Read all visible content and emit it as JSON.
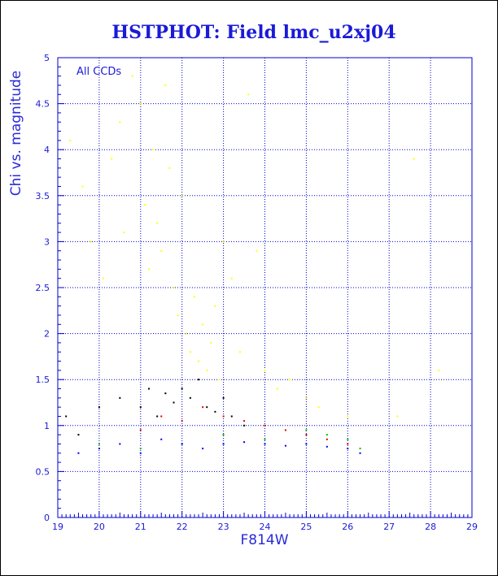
{
  "chart_data": {
    "type": "scatter",
    "title": "HSTPHOT: Field lmc_u2xj04",
    "xlabel": "F814W",
    "ylabel": "Chi vs. magnitude",
    "annotation": "All CCDs",
    "xlim": [
      19,
      29
    ],
    "ylim": [
      0,
      5
    ],
    "x_ticks": [
      "19",
      "20",
      "21",
      "22",
      "23",
      "24",
      "25",
      "26",
      "27",
      "28",
      "29"
    ],
    "y_ticks": [
      "0",
      "0.5",
      "1",
      "1.5",
      "2",
      "2.5",
      "3",
      "3.5",
      "4",
      "4.5",
      "5"
    ],
    "grid": true,
    "colors": {
      "axis": "#0000cc",
      "text": "#1a1ad8",
      "yellow": "#ffff00",
      "black": "#000000",
      "red": "#e00000",
      "green": "#00c000",
      "blue": "#0000ff"
    },
    "series": [
      {
        "color_name": "yellow",
        "points": [
          [
            19.3,
            4.1
          ],
          [
            19.6,
            3.6
          ],
          [
            19.8,
            3.0
          ],
          [
            20.1,
            2.6
          ],
          [
            20.3,
            3.9
          ],
          [
            20.5,
            4.3
          ],
          [
            20.6,
            3.1
          ],
          [
            20.8,
            4.8
          ],
          [
            21.0,
            4.5
          ],
          [
            21.1,
            3.4
          ],
          [
            21.2,
            2.7
          ],
          [
            21.3,
            4.0
          ],
          [
            21.4,
            3.2
          ],
          [
            21.5,
            2.9
          ],
          [
            21.6,
            4.7
          ],
          [
            21.7,
            3.8
          ],
          [
            21.8,
            2.5
          ],
          [
            21.9,
            2.2
          ],
          [
            22.0,
            3.5
          ],
          [
            22.1,
            2.0
          ],
          [
            22.2,
            1.8
          ],
          [
            22.3,
            2.4
          ],
          [
            22.4,
            1.7
          ],
          [
            22.5,
            2.1
          ],
          [
            22.6,
            1.6
          ],
          [
            22.7,
            1.9
          ],
          [
            22.8,
            2.3
          ],
          [
            22.9,
            1.5
          ],
          [
            23.0,
            3.0
          ],
          [
            23.2,
            2.6
          ],
          [
            23.4,
            1.8
          ],
          [
            23.6,
            4.6
          ],
          [
            23.8,
            2.9
          ],
          [
            24.0,
            1.6
          ],
          [
            24.3,
            1.4
          ],
          [
            24.6,
            1.5
          ],
          [
            25.0,
            1.3
          ],
          [
            25.3,
            1.2
          ],
          [
            26.0,
            1.1
          ],
          [
            27.2,
            1.1
          ],
          [
            27.6,
            3.9
          ],
          [
            28.2,
            1.6
          ]
        ]
      },
      {
        "color_name": "black",
        "points": [
          [
            19.2,
            1.1
          ],
          [
            19.5,
            0.9
          ],
          [
            20.0,
            1.2
          ],
          [
            20.5,
            1.3
          ],
          [
            21.0,
            1.2
          ],
          [
            21.2,
            1.4
          ],
          [
            21.4,
            1.1
          ],
          [
            21.6,
            1.35
          ],
          [
            21.8,
            1.25
          ],
          [
            22.0,
            1.4
          ],
          [
            22.2,
            1.3
          ],
          [
            22.4,
            1.5
          ],
          [
            22.6,
            1.2
          ],
          [
            22.8,
            1.15
          ],
          [
            23.0,
            1.3
          ],
          [
            23.2,
            1.1
          ],
          [
            23.5,
            1.0
          ]
        ]
      },
      {
        "color_name": "red",
        "points": [
          [
            21.0,
            0.95
          ],
          [
            21.5,
            1.1
          ],
          [
            22.0,
            1.05
          ],
          [
            22.5,
            1.2
          ],
          [
            23.0,
            1.1
          ],
          [
            23.5,
            1.05
          ],
          [
            24.0,
            1.0
          ],
          [
            24.5,
            0.95
          ],
          [
            25.0,
            0.9
          ],
          [
            25.5,
            0.85
          ],
          [
            26.0,
            0.8
          ]
        ]
      },
      {
        "color_name": "green",
        "points": [
          [
            20.0,
            0.8
          ],
          [
            21.0,
            0.75
          ],
          [
            22.0,
            0.8
          ],
          [
            23.0,
            0.9
          ],
          [
            24.0,
            0.85
          ],
          [
            25.0,
            0.95
          ],
          [
            25.5,
            0.9
          ],
          [
            26.0,
            0.85
          ],
          [
            26.3,
            0.75
          ]
        ]
      },
      {
        "color_name": "blue",
        "points": [
          [
            19.5,
            0.7
          ],
          [
            20.0,
            0.75
          ],
          [
            20.5,
            0.8
          ],
          [
            21.0,
            0.7
          ],
          [
            21.5,
            0.85
          ],
          [
            22.0,
            0.8
          ],
          [
            22.5,
            0.75
          ],
          [
            23.0,
            0.8
          ],
          [
            23.5,
            0.82
          ],
          [
            24.0,
            0.8
          ],
          [
            24.5,
            0.78
          ],
          [
            25.0,
            0.8
          ],
          [
            25.5,
            0.77
          ],
          [
            26.0,
            0.75
          ],
          [
            26.3,
            0.7
          ]
        ]
      }
    ]
  }
}
